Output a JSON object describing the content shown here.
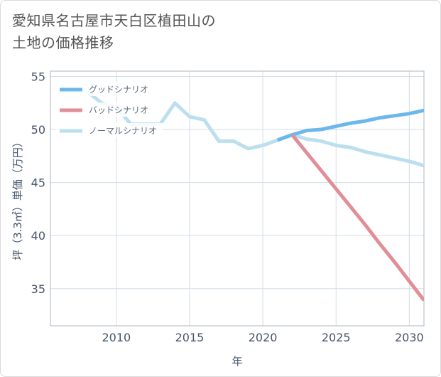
{
  "title": {
    "line1": "愛知県名古屋市天白区植田山の",
    "line2": "土地の価格推移"
  },
  "chart_data": {
    "type": "line",
    "title": "愛知県名古屋市天白区植田山の土地の価格推移",
    "xlabel": "年",
    "ylabel": "坪（3.3㎡）単価（万円）",
    "xlim": [
      2005.5,
      2031
    ],
    "ylim": [
      31.5,
      55.5
    ],
    "xticks": [
      2010,
      2015,
      2020,
      2025,
      2030
    ],
    "yticks": [
      35,
      40,
      45,
      50,
      55
    ],
    "grid": true,
    "legend_position": "top-left",
    "series": [
      {
        "name": "グッドシナリオ",
        "color": "#6cb8ec",
        "x": [
          2021,
          2022,
          2023,
          2024,
          2025,
          2026,
          2027,
          2028,
          2029,
          2030,
          2031
        ],
        "values": [
          49.0,
          49.5,
          49.9,
          50.0,
          50.3,
          50.6,
          50.8,
          51.1,
          51.3,
          51.5,
          51.8
        ]
      },
      {
        "name": "バッドシナリオ",
        "color": "#e08f97",
        "x": [
          2022,
          2023,
          2024,
          2025,
          2026,
          2027,
          2028,
          2029,
          2030,
          2031
        ],
        "values": [
          49.5,
          47.8,
          46.1,
          44.4,
          42.7,
          41.0,
          39.2,
          37.5,
          35.7,
          33.9
        ]
      },
      {
        "name": "ノーマルシナリオ",
        "color": "#bcdff0",
        "x": [
          2008,
          2009,
          2010,
          2011,
          2012,
          2013,
          2014,
          2015,
          2016,
          2017,
          2018,
          2019,
          2020,
          2021,
          2022,
          2023,
          2024,
          2025,
          2026,
          2027,
          2028,
          2029,
          2030,
          2031
        ],
        "values": [
          53.6,
          52.5,
          52.1,
          50.5,
          50.5,
          50.5,
          52.5,
          51.2,
          50.9,
          48.9,
          48.9,
          48.2,
          48.5,
          49.0,
          49.5,
          49.1,
          48.9,
          48.5,
          48.3,
          47.9,
          47.6,
          47.3,
          47.0,
          46.6
        ]
      }
    ]
  }
}
